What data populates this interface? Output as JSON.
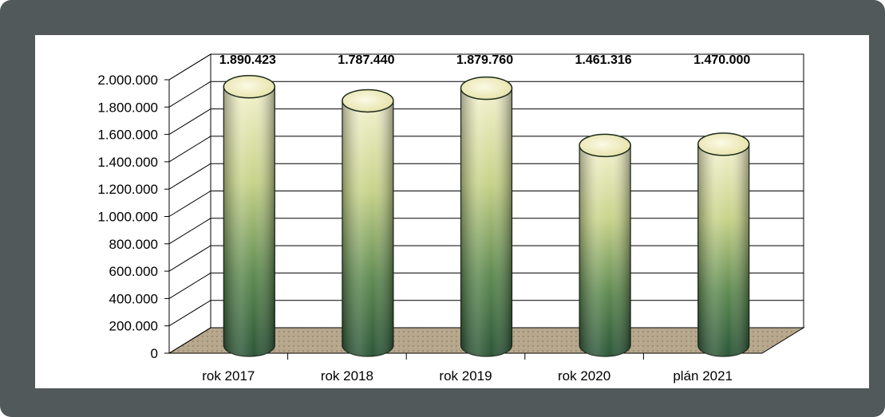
{
  "chart_data": {
    "type": "bar",
    "title": "",
    "xlabel": "",
    "ylabel": "",
    "categories": [
      "rok 2017",
      "rok 2018",
      "rok 2019",
      "rok 2020",
      "plán 2021"
    ],
    "values": [
      1890423,
      1787440,
      1879760,
      1461316,
      1470000
    ],
    "value_labels": [
      "1.890.423",
      "1.787.440",
      "1.879.760",
      "1.461.316",
      "1.470.000"
    ],
    "ylim": [
      0,
      2000000
    ],
    "yticks": [
      "0",
      "200.000",
      "400.000",
      "600.000",
      "800.000",
      "1.000.000",
      "1.200.000",
      "1.400.000",
      "1.600.000",
      "1.800.000",
      "2.000.000"
    ],
    "grid": true,
    "legend": "none",
    "colors": {
      "frame": "#52595a",
      "bar_top": "#f2f0c8",
      "bar_bottom": "#2f5a3c",
      "floor": "#b8a88e",
      "grid": "#000000"
    }
  }
}
